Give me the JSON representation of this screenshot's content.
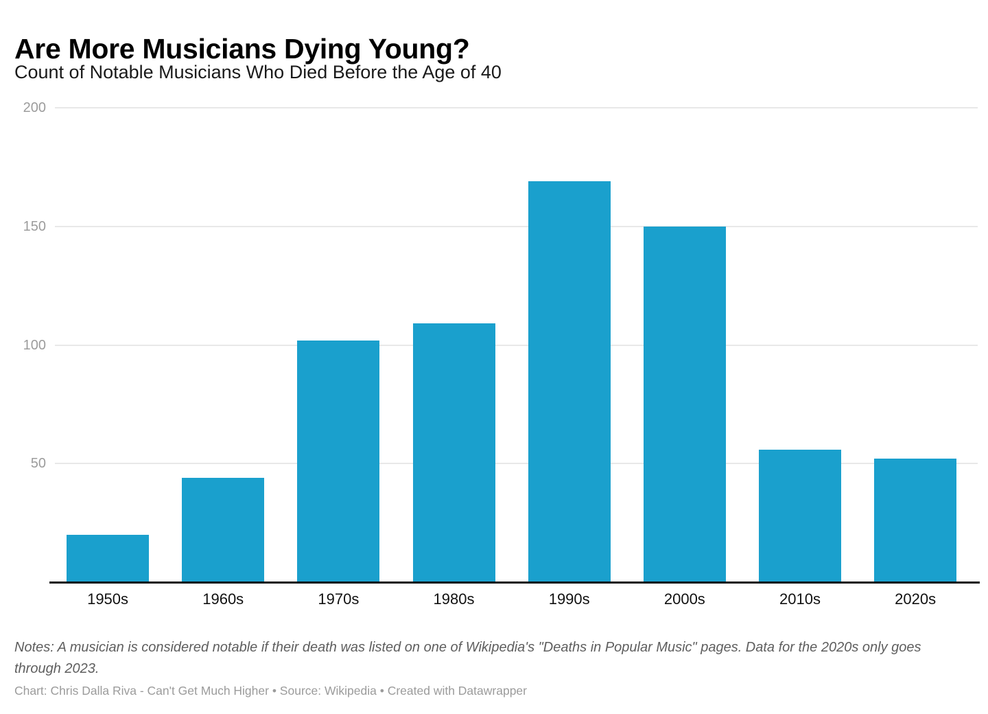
{
  "header": {
    "title": "Are More Musicians Dying Young?",
    "subtitle": "Count of Notable Musicians Who Died Before the Age of 40"
  },
  "chart_data": {
    "type": "bar",
    "title": "Are More Musicians Dying Young?",
    "subtitle": "Count of Notable Musicians Who Died Before the Age of 40",
    "categories": [
      "1950s",
      "1960s",
      "1970s",
      "1980s",
      "1990s",
      "2000s",
      "2010s",
      "2020s"
    ],
    "values": [
      20,
      44,
      102,
      109,
      169,
      150,
      56,
      52
    ],
    "xlabel": "",
    "ylabel": "",
    "ylim": [
      0,
      200
    ],
    "yticks": [
      50,
      100,
      150,
      200
    ],
    "grid": "horizontal-only",
    "legend": "none",
    "bar_color": "#1aa0cd",
    "gridline_color": "#e8e8e8",
    "axis_label_color": "#9c9c9c",
    "baseline_color": "#0b0b0b"
  },
  "footer": {
    "notes": "Notes: A musician is considered notable if their death was listed on one of Wikipedia's \"Deaths in Popular Music\" pages. Data for the 2020s only goes through 2023.",
    "credit": "Chart: Chris Dalla Riva - Can't Get Much Higher • Source: Wikipedia • Created with Datawrapper"
  }
}
